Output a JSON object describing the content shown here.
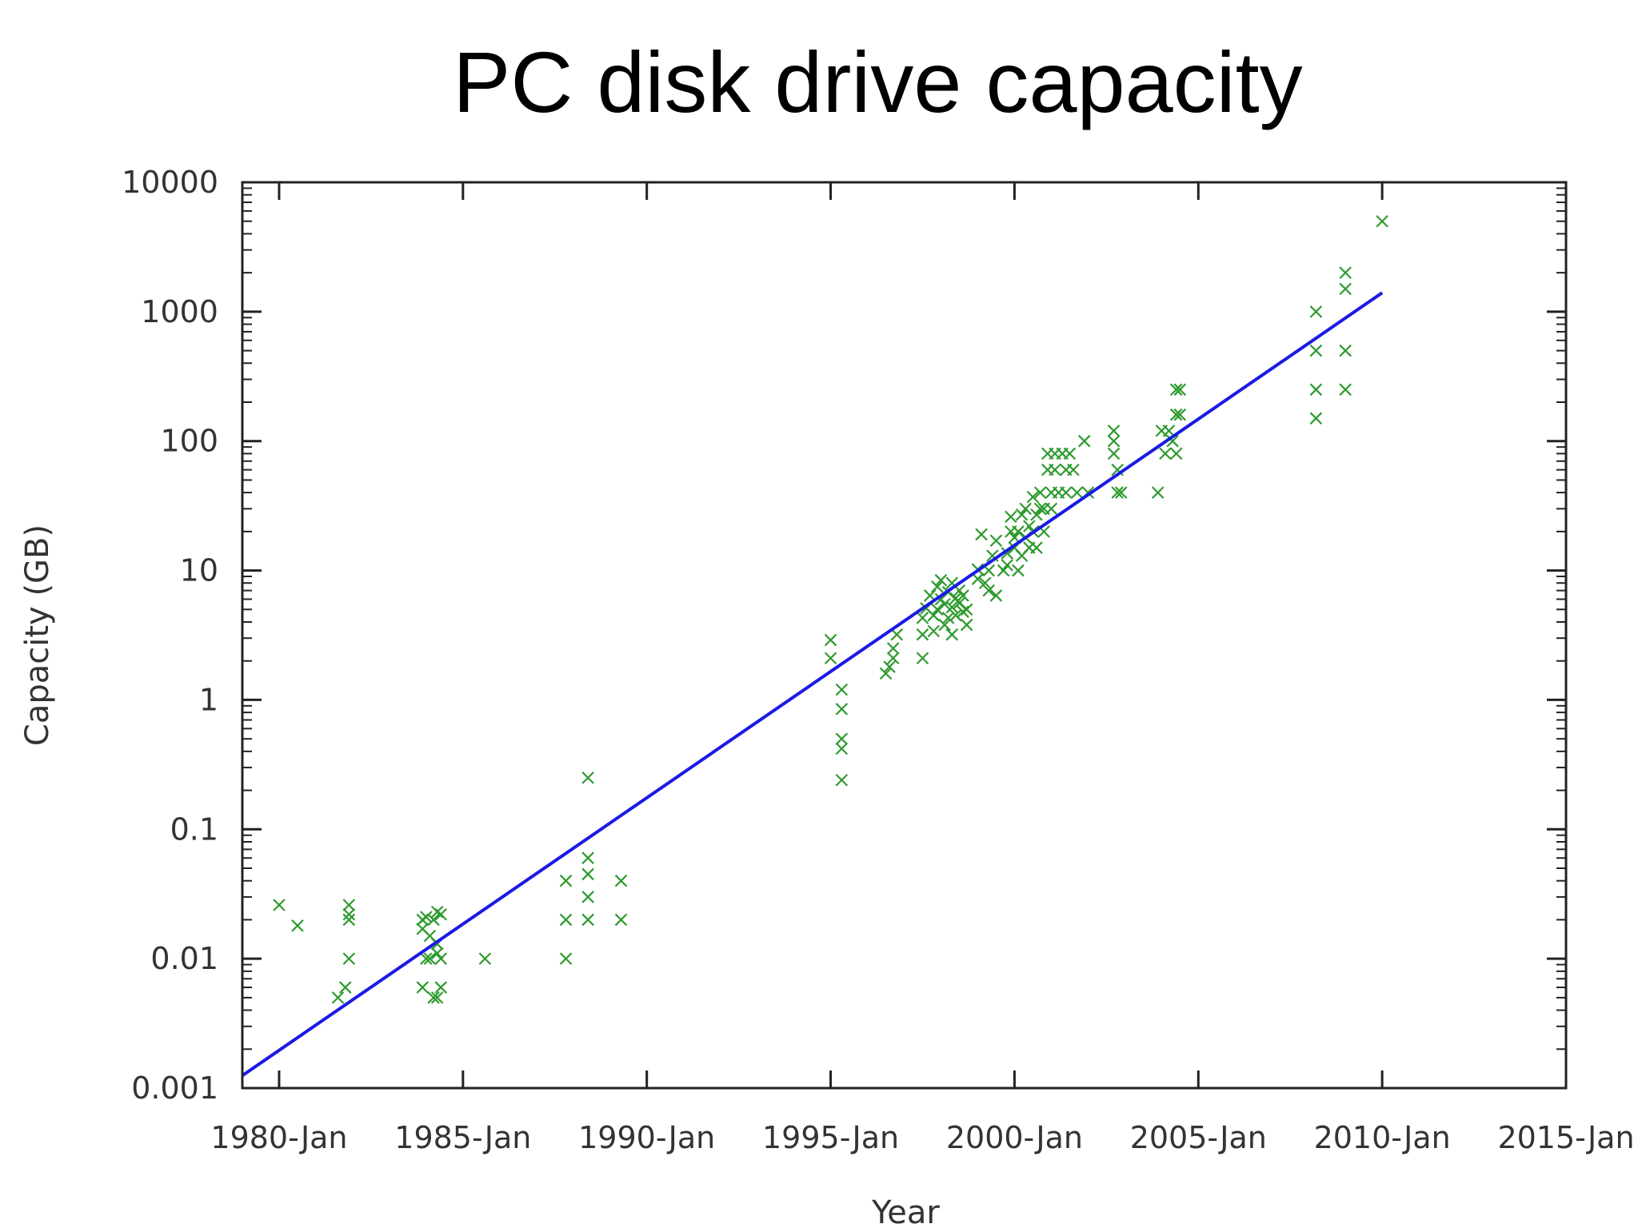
{
  "title": "PC disk drive capacity",
  "chart_data": {
    "type": "scatter",
    "xlabel": "Year",
    "ylabel": "Capacity (GB)",
    "x_tick_labels": [
      "1980-Jan",
      "1985-Jan",
      "1990-Jan",
      "1995-Jan",
      "2000-Jan",
      "2005-Jan",
      "2010-Jan",
      "2015-Jan"
    ],
    "y_tick_labels": [
      "0.001",
      "0.01",
      "0.1",
      "1",
      "10",
      "100",
      "1000",
      "10000"
    ],
    "x_ticks": [
      1980,
      1985,
      1990,
      1995,
      2000,
      2005,
      2010,
      2015
    ],
    "y_ticks": [
      0.001,
      0.01,
      0.1,
      1,
      10,
      100,
      1000,
      10000
    ],
    "xlim": [
      1979,
      2015
    ],
    "ylim": [
      0.001,
      10000
    ],
    "yscale": "log",
    "grid": false,
    "colors": {
      "points": "#2e9a2e",
      "trend": "#1a1ae6",
      "axis": "#222222"
    },
    "series": [
      {
        "type": "scatter",
        "marker": "x",
        "points": [
          [
            1980.0,
            0.026
          ],
          [
            1980.5,
            0.018
          ],
          [
            1981.6,
            0.005
          ],
          [
            1981.8,
            0.006
          ],
          [
            1981.9,
            0.026
          ],
          [
            1981.9,
            0.02
          ],
          [
            1981.9,
            0.01
          ],
          [
            1981.9,
            0.022
          ],
          [
            1983.9,
            0.02
          ],
          [
            1983.9,
            0.017
          ],
          [
            1983.9,
            0.006
          ],
          [
            1984.0,
            0.01
          ],
          [
            1984.0,
            0.021
          ],
          [
            1984.1,
            0.015
          ],
          [
            1984.1,
            0.01
          ],
          [
            1984.2,
            0.005
          ],
          [
            1984.2,
            0.02
          ],
          [
            1984.3,
            0.023
          ],
          [
            1984.3,
            0.011
          ],
          [
            1984.3,
            0.005
          ],
          [
            1984.3,
            0.013
          ],
          [
            1984.4,
            0.006
          ],
          [
            1984.4,
            0.01
          ],
          [
            1984.4,
            0.022
          ],
          [
            1985.6,
            0.01
          ],
          [
            1987.8,
            0.04
          ],
          [
            1987.8,
            0.02
          ],
          [
            1987.8,
            0.01
          ],
          [
            1988.4,
            0.25
          ],
          [
            1988.4,
            0.06
          ],
          [
            1988.4,
            0.045
          ],
          [
            1988.4,
            0.03
          ],
          [
            1988.4,
            0.02
          ],
          [
            1989.3,
            0.04
          ],
          [
            1989.3,
            0.02
          ],
          [
            1995.0,
            2.9
          ],
          [
            1995.0,
            2.1
          ],
          [
            1995.3,
            1.2
          ],
          [
            1995.3,
            0.85
          ],
          [
            1995.3,
            0.5
          ],
          [
            1995.3,
            0.42
          ],
          [
            1995.3,
            0.24
          ],
          [
            1996.5,
            1.6
          ],
          [
            1996.6,
            1.8
          ],
          [
            1996.7,
            2.1
          ],
          [
            1996.7,
            2.5
          ],
          [
            1996.8,
            3.2
          ],
          [
            1997.5,
            2.1
          ],
          [
            1997.5,
            3.2
          ],
          [
            1997.5,
            4.3
          ],
          [
            1997.6,
            5.1
          ],
          [
            1997.7,
            6.4
          ],
          [
            1997.8,
            3.4
          ],
          [
            1997.8,
            4.5
          ],
          [
            1997.9,
            7.5
          ],
          [
            1997.9,
            5.0
          ],
          [
            1998.0,
            6.0
          ],
          [
            1998.0,
            8.4
          ],
          [
            1998.1,
            3.8
          ],
          [
            1998.1,
            5.5
          ],
          [
            1998.2,
            6.8
          ],
          [
            1998.2,
            4.3
          ],
          [
            1998.3,
            8.0
          ],
          [
            1998.3,
            5.2
          ],
          [
            1998.3,
            3.2
          ],
          [
            1998.4,
            6.1
          ],
          [
            1998.4,
            4.5
          ],
          [
            1998.5,
            7.0
          ],
          [
            1998.5,
            5.6
          ],
          [
            1998.6,
            4.8
          ],
          [
            1998.6,
            6.4
          ],
          [
            1998.7,
            5.0
          ],
          [
            1998.7,
            3.8
          ],
          [
            1999.0,
            8.6
          ],
          [
            1999.0,
            10.2
          ],
          [
            1999.1,
            19.0
          ],
          [
            1999.2,
            8.0
          ],
          [
            1999.3,
            10.0
          ],
          [
            1999.3,
            7.0
          ],
          [
            1999.4,
            13.0
          ],
          [
            1999.5,
            6.4
          ],
          [
            1999.5,
            17.0
          ],
          [
            1999.7,
            10.0
          ],
          [
            1999.8,
            11.0
          ],
          [
            1999.8,
            13.6
          ],
          [
            1999.9,
            20.0
          ],
          [
            1999.9,
            26.0
          ],
          [
            2000.0,
            15.0
          ],
          [
            2000.0,
            18.0
          ],
          [
            2000.1,
            20.0
          ],
          [
            2000.1,
            10.0
          ],
          [
            2000.2,
            27.0
          ],
          [
            2000.2,
            13.0
          ],
          [
            2000.3,
            18.0
          ],
          [
            2000.3,
            30.0
          ],
          [
            2000.4,
            22.0
          ],
          [
            2000.4,
            15.0
          ],
          [
            2000.5,
            37.0
          ],
          [
            2000.5,
            20.0
          ],
          [
            2000.6,
            15.0
          ],
          [
            2000.6,
            27.0
          ],
          [
            2000.7,
            30.0
          ],
          [
            2000.7,
            40.0
          ],
          [
            2000.8,
            20.0
          ],
          [
            2000.8,
            30.0
          ],
          [
            2000.9,
            80.0
          ],
          [
            2000.9,
            60.0
          ],
          [
            2001.0,
            40.0
          ],
          [
            2001.0,
            30.0
          ],
          [
            2001.1,
            80.0
          ],
          [
            2001.1,
            60.0
          ],
          [
            2001.2,
            40.0
          ],
          [
            2001.3,
            80.0
          ],
          [
            2001.4,
            60.0
          ],
          [
            2001.4,
            40.0
          ],
          [
            2001.5,
            80.0
          ],
          [
            2001.6,
            60.0
          ],
          [
            2001.7,
            40.0
          ],
          [
            2001.9,
            100.0
          ],
          [
            2002.0,
            40.0
          ],
          [
            2002.7,
            120.0
          ],
          [
            2002.7,
            100.0
          ],
          [
            2002.7,
            80.0
          ],
          [
            2002.8,
            60.0
          ],
          [
            2002.8,
            40.0
          ],
          [
            2002.9,
            40.0
          ],
          [
            2003.9,
            40.0
          ],
          [
            2004.0,
            120.0
          ],
          [
            2004.1,
            80.0
          ],
          [
            2004.2,
            120.0
          ],
          [
            2004.3,
            100.0
          ],
          [
            2004.4,
            80.0
          ],
          [
            2004.4,
            160.0
          ],
          [
            2004.4,
            250.0
          ],
          [
            2004.5,
            250.0
          ],
          [
            2004.5,
            160.0
          ],
          [
            2008.2,
            1000.0
          ],
          [
            2008.2,
            500.0
          ],
          [
            2008.2,
            250.0
          ],
          [
            2008.2,
            150.0
          ],
          [
            2009.0,
            2000.0
          ],
          [
            2009.0,
            1500.0
          ],
          [
            2009.0,
            500.0
          ],
          [
            2009.0,
            250.0
          ],
          [
            2010.0,
            5000.0
          ]
        ]
      },
      {
        "type": "line",
        "points": [
          [
            1979,
            0.00125
          ],
          [
            2010,
            1400
          ]
        ]
      }
    ]
  }
}
